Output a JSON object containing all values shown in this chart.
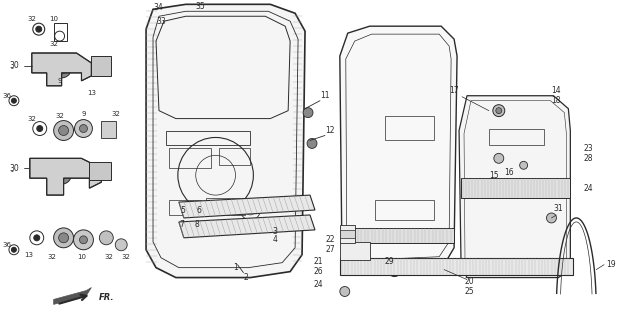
{
  "bg_color": "#ffffff",
  "line_color": "#2a2a2a",
  "fig_width": 6.23,
  "fig_height": 3.2,
  "dpi": 100
}
